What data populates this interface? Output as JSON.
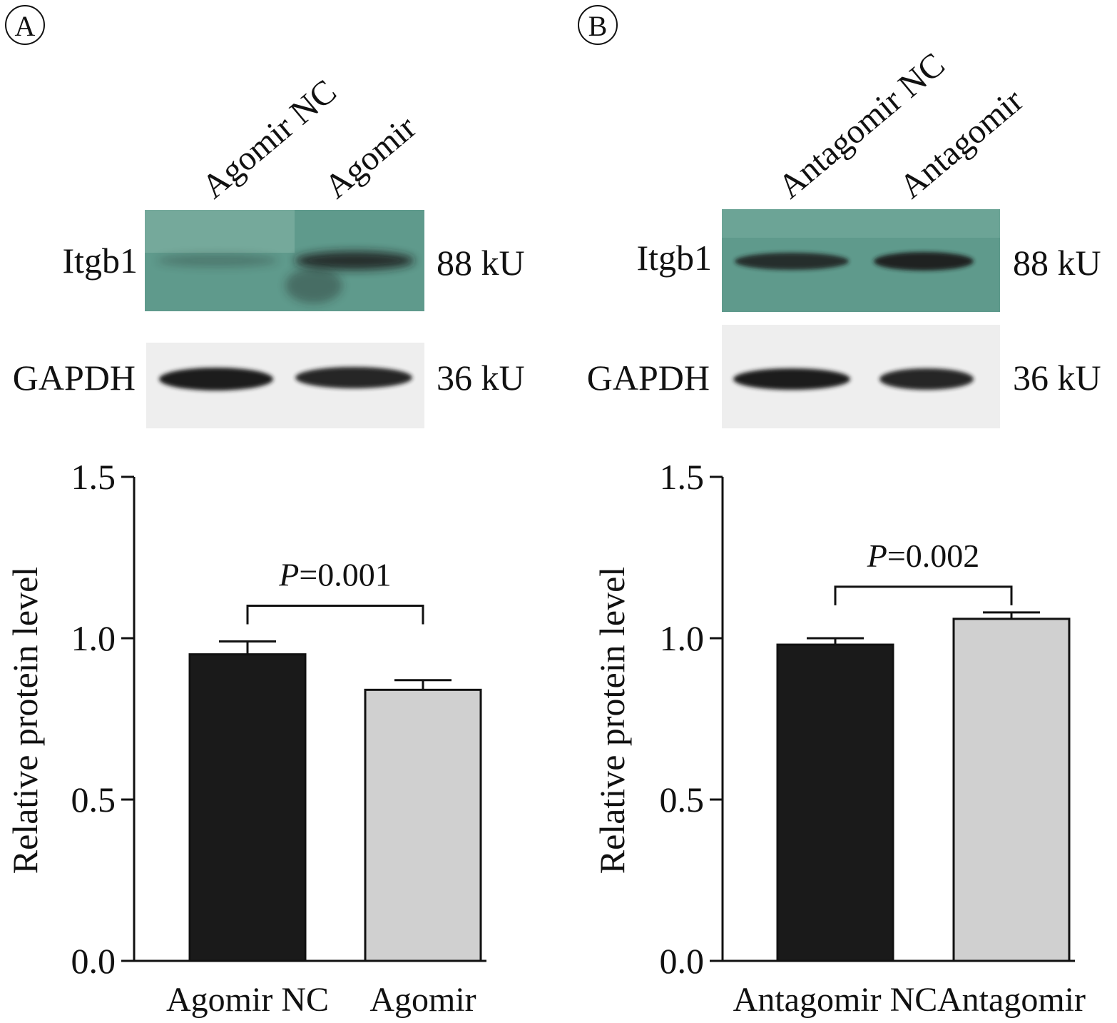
{
  "colors": {
    "blot_background": "#5f9a8c",
    "blot_background_light": "#86b6a8",
    "gapdh_background": "#eeeeee",
    "band": "#1a1a1a",
    "bar_control": "#1a1a1a",
    "bar_treated": "#d0d0d0",
    "axis": "#111111"
  },
  "panels": [
    {
      "letter": "A",
      "lanes": [
        "Agomir NC",
        "Agomir"
      ],
      "blots": [
        {
          "protein": "Itgb1",
          "size": "88 kU",
          "band_intensity": [
            0.25,
            0.85
          ]
        },
        {
          "protein": "GAPDH",
          "size": "36 kU",
          "band_intensity": [
            1.0,
            0.95
          ]
        }
      ]
    },
    {
      "letter": "B",
      "lanes": [
        "Antagomir NC",
        "Antagomir"
      ],
      "blots": [
        {
          "protein": "Itgb1",
          "size": "88 kU",
          "band_intensity": [
            0.85,
            0.95
          ]
        },
        {
          "protein": "GAPDH",
          "size": "36 kU",
          "band_intensity": [
            1.0,
            0.95
          ]
        }
      ]
    }
  ],
  "chart_data": [
    {
      "type": "bar",
      "panel": "A",
      "categories": [
        "Agomir NC",
        "Agomir"
      ],
      "values": [
        0.95,
        0.84
      ],
      "errors": [
        0.04,
        0.03
      ],
      "ylabel": "Relative protein level",
      "xlabel": "",
      "ylim": [
        0,
        1.5
      ],
      "yticks": [
        "0.0",
        "0.5",
        "1.0",
        "1.5"
      ],
      "annotation": {
        "label": "P",
        "text": "=0.001"
      }
    },
    {
      "type": "bar",
      "panel": "B",
      "categories": [
        "Antagomir NC",
        "Antagomir"
      ],
      "values": [
        0.98,
        1.06
      ],
      "errors": [
        0.02,
        0.02
      ],
      "ylabel": "Relative protein level",
      "xlabel": "",
      "ylim": [
        0,
        1.5
      ],
      "yticks": [
        "0.0",
        "0.5",
        "1.0",
        "1.5"
      ],
      "annotation": {
        "label": "P",
        "text": "=0.002"
      }
    }
  ]
}
